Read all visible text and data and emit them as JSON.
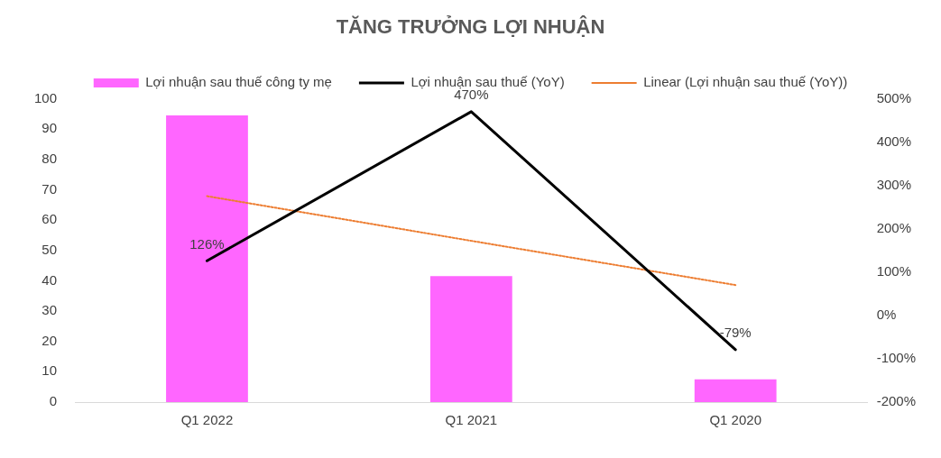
{
  "chart_data": {
    "type": "bar",
    "title": "TĂNG TRƯỞNG LỢI NHUẬN",
    "categories": [
      "Q1 2022",
      "Q1 2021",
      "Q1 2020"
    ],
    "series": [
      {
        "name": "Lợi nhuận sau thuế công ty mẹ",
        "color": "#ff66ff",
        "values": [
          94.5,
          41.5,
          7.5
        ]
      },
      {
        "name": "Lợi nhuận sau thuế (YoY)",
        "type": "line",
        "axis": "y2",
        "color": "#000000",
        "line_style": "solid",
        "marker": "none",
        "values": [
          126,
          470,
          -79
        ],
        "value_labels": [
          "126%",
          "470%",
          "-79%"
        ]
      },
      {
        "name": "Linear (Lợi nhuận sau thuế (YoY))",
        "type": "line",
        "axis": "y2",
        "color": "#ed7d31",
        "line_style": "dotted",
        "marker": "none",
        "values": [
          275,
          172,
          70
        ]
      }
    ],
    "ylim": [
      0,
      100
    ],
    "yticks": [
      0,
      10,
      20,
      30,
      40,
      50,
      60,
      70,
      80,
      90,
      100
    ],
    "y2lim": [
      -200,
      500
    ],
    "y2ticks": [
      {
        "value": -200,
        "label": "-200%"
      },
      {
        "value": -100,
        "label": "-100%"
      },
      {
        "value": 0,
        "label": "0%"
      },
      {
        "value": 100,
        "label": "100%"
      },
      {
        "value": 200,
        "label": "200%"
      },
      {
        "value": 300,
        "label": "300%"
      },
      {
        "value": 400,
        "label": "400%"
      },
      {
        "value": 500,
        "label": "500%"
      }
    ],
    "legend": "top"
  }
}
